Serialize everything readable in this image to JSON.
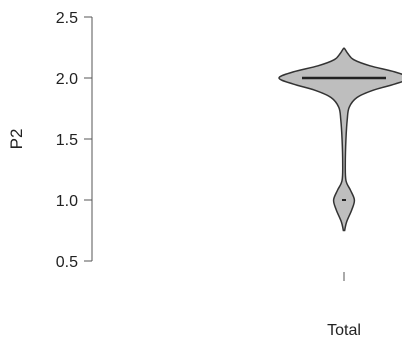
{
  "chart_data": {
    "type": "violin",
    "ylabel": "P2",
    "categories": [
      "Total"
    ],
    "ylim": [
      0.5,
      2.5
    ],
    "yticks": [
      {
        "value": 0.5,
        "label": "0.5"
      },
      {
        "value": 1.0,
        "label": "1.0"
      },
      {
        "value": 1.5,
        "label": "1.5"
      },
      {
        "value": 2.0,
        "label": "2.0"
      },
      {
        "value": 2.5,
        "label": "2.5"
      }
    ],
    "violins": [
      {
        "category": "Total",
        "median": 2.0,
        "min_tail": 0.75,
        "max": 2.24,
        "fill_color": "#bebebe",
        "line_color": "#333333",
        "density_profile": [
          {
            "y": 0.75,
            "w": 0.01
          },
          {
            "y": 0.82,
            "w": 0.04
          },
          {
            "y": 0.92,
            "w": 0.12
          },
          {
            "y": 1.0,
            "w": 0.16
          },
          {
            "y": 1.08,
            "w": 0.1
          },
          {
            "y": 1.16,
            "w": 0.03
          },
          {
            "y": 1.3,
            "w": 0.02
          },
          {
            "y": 1.5,
            "w": 0.03
          },
          {
            "y": 1.66,
            "w": 0.05
          },
          {
            "y": 1.76,
            "w": 0.08
          },
          {
            "y": 1.84,
            "w": 0.2
          },
          {
            "y": 1.9,
            "w": 0.45
          },
          {
            "y": 1.95,
            "w": 0.78
          },
          {
            "y": 2.0,
            "w": 1.0
          },
          {
            "y": 2.05,
            "w": 0.78
          },
          {
            "y": 2.1,
            "w": 0.4
          },
          {
            "y": 2.15,
            "w": 0.15
          },
          {
            "y": 2.2,
            "w": 0.06
          },
          {
            "y": 2.24,
            "w": 0.01
          }
        ]
      }
    ]
  }
}
